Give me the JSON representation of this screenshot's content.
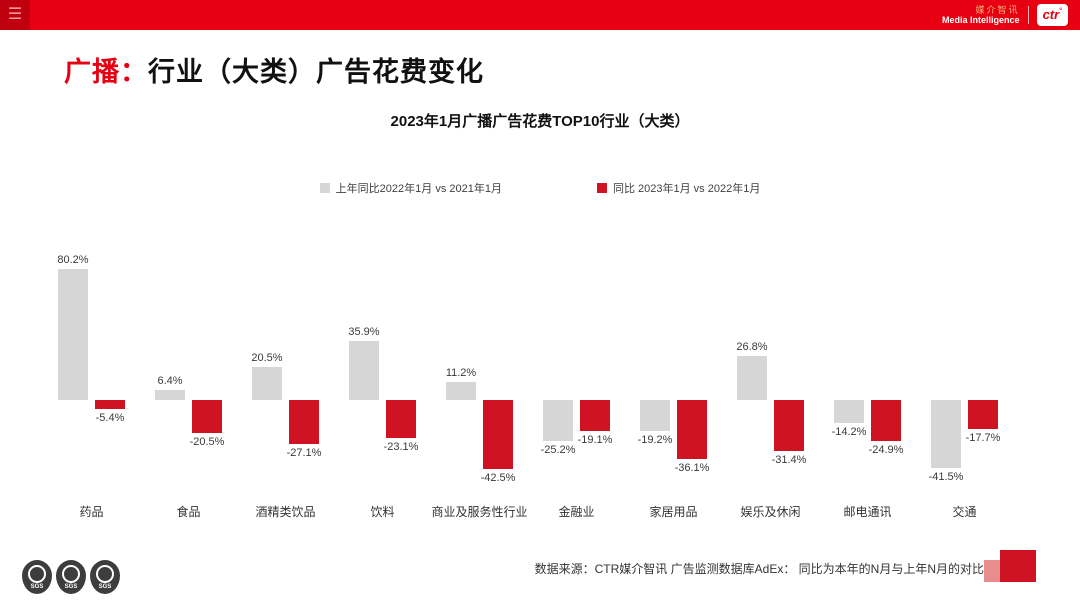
{
  "topbar": {
    "menu_icon": "hamburger-icon",
    "brand_cn": "媒介智讯",
    "brand_en": "Media Intelligence",
    "brand_logo": "ctr",
    "brand_logo_degree": "°"
  },
  "page_title": {
    "prefix": "广播：",
    "rest": "行业（大类）广告花费变化"
  },
  "chart_data": {
    "type": "bar",
    "title": "2023年1月广播广告花费TOP10行业（大类）",
    "categories": [
      "药品",
      "食品",
      "酒精类饮品",
      "饮料",
      "商业及服务性行业",
      "金融业",
      "家居用品",
      "娱乐及休闲",
      "邮电通讯",
      "交通"
    ],
    "series": [
      {
        "name": "上年同比2022年1月  vs  2021年1月",
        "color": "#d6d6d6",
        "values": [
          80.2,
          6.4,
          20.5,
          35.9,
          11.2,
          -25.2,
          -19.2,
          26.8,
          -14.2,
          -41.5
        ]
      },
      {
        "name": "同比 2023年1月  vs  2022年1月",
        "color": "#cf1322",
        "values": [
          -5.4,
          -20.5,
          -27.1,
          -23.1,
          -42.5,
          -19.1,
          -36.1,
          -31.4,
          -24.9,
          -17.7
        ]
      }
    ],
    "value_suffix": "%",
    "ylim": [
      -50,
      90
    ],
    "grid": false,
    "legend_position": "top",
    "xlabel": "",
    "ylabel": ""
  },
  "footer": {
    "source_text": "数据来源：CTR媒介智讯 广告监测数据库AdEx：    同比为本年的N月与上年N月的对比"
  },
  "sgs": {
    "label": "SGS"
  },
  "colors": {
    "accent_red": "#e60012",
    "bar_gray": "#d6d6d6",
    "bar_red": "#cf1322"
  }
}
